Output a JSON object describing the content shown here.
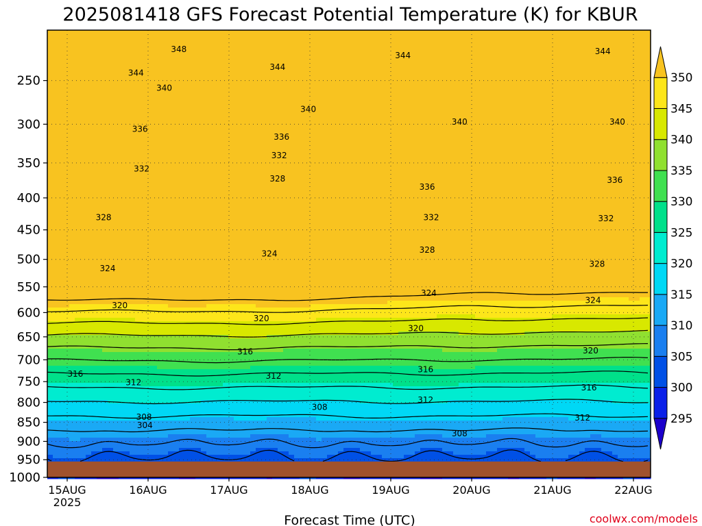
{
  "chart_data": {
    "type": "contour",
    "title": "2025081418 GFS Forecast Potential Temperature (K) for KBUR",
    "xlabel": "Forecast Time (UTC)",
    "ylabel": "",
    "credit": "coolwx.com/models",
    "x_ticks": [
      "15AUG",
      "16AUG",
      "17AUG",
      "18AUG",
      "19AUG",
      "20AUG",
      "21AUG",
      "22AUG"
    ],
    "x_year": "2025",
    "y_ticks": [
      250,
      300,
      350,
      400,
      450,
      500,
      550,
      600,
      650,
      700,
      750,
      800,
      850,
      900,
      950,
      1000
    ],
    "y_range": [
      200,
      1000
    ],
    "surface_pressure": 955,
    "colorbar": {
      "levels": [
        295,
        300,
        305,
        310,
        315,
        320,
        325,
        330,
        335,
        340,
        345,
        350
      ],
      "colors": [
        "#1c00cc",
        "#0a20e8",
        "#0050e6",
        "#1a7ff0",
        "#1aa9f5",
        "#00d8f5",
        "#00ecd0",
        "#00e08a",
        "#40e050",
        "#90e030",
        "#d8e800",
        "#fde61a",
        "#f8c320"
      ]
    },
    "contour_labels": [
      {
        "t": 1.38,
        "p": 218,
        "text": "348"
      },
      {
        "t": 0.85,
        "p": 242,
        "text": "344"
      },
      {
        "t": 2.6,
        "p": 236,
        "text": "344"
      },
      {
        "t": 4.15,
        "p": 224,
        "text": "344"
      },
      {
        "t": 6.62,
        "p": 220,
        "text": "344"
      },
      {
        "t": 1.2,
        "p": 258,
        "text": "340"
      },
      {
        "t": 2.98,
        "p": 282,
        "text": "340"
      },
      {
        "t": 4.85,
        "p": 297,
        "text": "340"
      },
      {
        "t": 6.8,
        "p": 297,
        "text": "340"
      },
      {
        "t": 0.9,
        "p": 306,
        "text": "336"
      },
      {
        "t": 2.65,
        "p": 316,
        "text": "336"
      },
      {
        "t": 4.45,
        "p": 384,
        "text": "336"
      },
      {
        "t": 6.77,
        "p": 374,
        "text": "336"
      },
      {
        "t": 0.92,
        "p": 358,
        "text": "332"
      },
      {
        "t": 2.62,
        "p": 340,
        "text": "332"
      },
      {
        "t": 4.5,
        "p": 430,
        "text": "332"
      },
      {
        "t": 6.66,
        "p": 432,
        "text": "332"
      },
      {
        "t": 0.45,
        "p": 430,
        "text": "328"
      },
      {
        "t": 2.6,
        "p": 372,
        "text": "328"
      },
      {
        "t": 4.45,
        "p": 484,
        "text": "328"
      },
      {
        "t": 6.55,
        "p": 508,
        "text": "328"
      },
      {
        "t": 0.5,
        "p": 516,
        "text": "324"
      },
      {
        "t": 2.5,
        "p": 490,
        "text": "324"
      },
      {
        "t": 4.47,
        "p": 562,
        "text": "324"
      },
      {
        "t": 6.5,
        "p": 576,
        "text": "324"
      },
      {
        "t": 0.65,
        "p": 586,
        "text": "320"
      },
      {
        "t": 2.4,
        "p": 612,
        "text": "320"
      },
      {
        "t": 4.31,
        "p": 632,
        "text": "320"
      },
      {
        "t": 6.47,
        "p": 680,
        "text": "320"
      },
      {
        "t": 0.1,
        "p": 732,
        "text": "316"
      },
      {
        "t": 2.2,
        "p": 682,
        "text": "316"
      },
      {
        "t": 4.43,
        "p": 722,
        "text": "316"
      },
      {
        "t": 6.45,
        "p": 764,
        "text": "316"
      },
      {
        "t": 0.82,
        "p": 752,
        "text": "312"
      },
      {
        "t": 2.55,
        "p": 737,
        "text": "312"
      },
      {
        "t": 4.43,
        "p": 794,
        "text": "312"
      },
      {
        "t": 6.37,
        "p": 838,
        "text": "312"
      },
      {
        "t": 0.95,
        "p": 837,
        "text": "308"
      },
      {
        "t": 3.12,
        "p": 812,
        "text": "308"
      },
      {
        "t": 4.85,
        "p": 879,
        "text": "308"
      },
      {
        "t": 0.96,
        "p": 858,
        "text": "304"
      }
    ]
  }
}
